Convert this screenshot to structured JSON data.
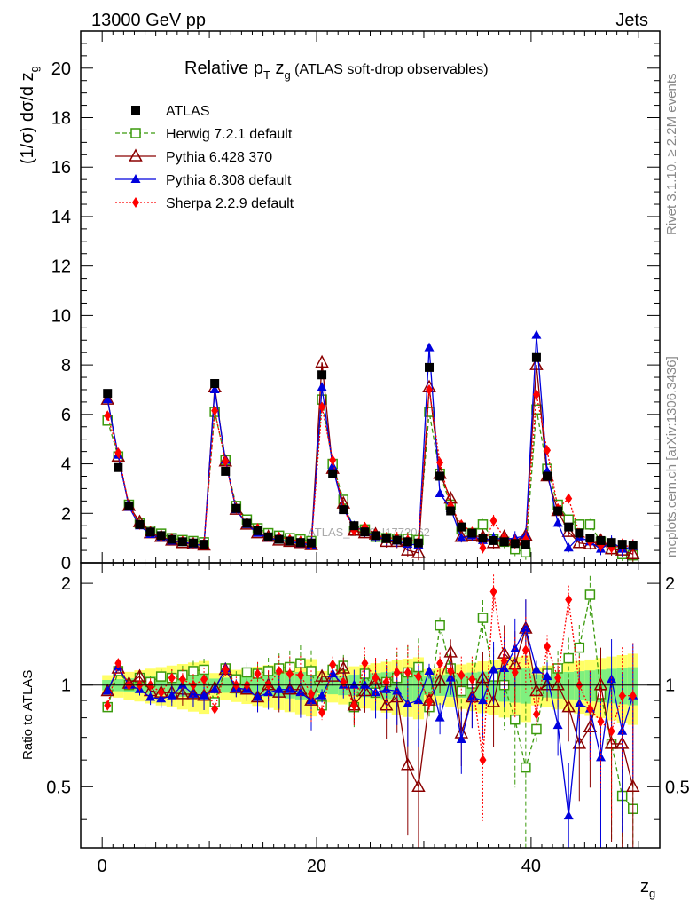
{
  "header": {
    "energy": "13000 GeV pp",
    "process": "Jets"
  },
  "title": {
    "prefix": "Relative p",
    "sub_t": "T",
    "mid": " z",
    "sub_g": "g",
    "suffix": " (ATLAS soft-drop observables)"
  },
  "ylabel_main": {
    "text": "(1/σ) dσ/d z",
    "sub": "g"
  },
  "ylabel_ratio": "Ratio to ATLAS",
  "xlabel": {
    "text": "z",
    "sub": "g"
  },
  "side_text_top": "Rivet 3.1.10, ≥ 2.2M events",
  "side_text_bottom": "mcplots.cern.ch [arXiv:1306.3436]",
  "watermark": "ATLAS_2019_I1772062",
  "colors": {
    "data": "#000000",
    "herwig": "#3a9a0c",
    "pythia6": "#8b0000",
    "pythia8": "#0000dd",
    "sherpa": "#ff0000",
    "band_inner": "#7ff07f",
    "band_outer": "#ffff66"
  },
  "chart_data": {
    "type": "line",
    "x_range": [
      -2,
      52
    ],
    "main_y_range": [
      0,
      21.5
    ],
    "ratio_y_range": [
      0.33,
      2.3
    ],
    "x_ticks": [
      "0",
      "20",
      "40"
    ],
    "y_ticks_main": [
      "0",
      "2",
      "4",
      "6",
      "8",
      "10",
      "12",
      "14",
      "16",
      "18",
      "20"
    ],
    "y_ticks_ratio": [
      "0.5",
      "1",
      "2"
    ],
    "legend": [
      "ATLAS",
      "Herwig 7.2.1 default",
      "Pythia 6.428 370",
      "Pythia 8.308 default",
      "Sherpa 2.2.9 default"
    ],
    "x": [
      0.5,
      1.5,
      2.5,
      3.5,
      4.5,
      5.5,
      6.5,
      7.5,
      8.5,
      9.5,
      10.5,
      11.5,
      12.5,
      13.5,
      14.5,
      15.5,
      16.5,
      17.5,
      18.5,
      19.5,
      20.5,
      21.5,
      22.5,
      23.5,
      24.5,
      25.5,
      26.5,
      27.5,
      28.5,
      29.5,
      30.5,
      31.5,
      32.5,
      33.5,
      34.5,
      35.5,
      36.5,
      37.5,
      38.5,
      39.5,
      40.5,
      41.5,
      42.5,
      43.5,
      44.5,
      45.5,
      46.5,
      47.5,
      48.5,
      49.5
    ],
    "series": [
      {
        "name": "ATLAS",
        "values": [
          6.85,
          3.85,
          2.3,
          1.55,
          1.25,
          1.1,
          0.95,
          0.85,
          0.8,
          0.75,
          7.25,
          3.7,
          2.2,
          1.6,
          1.3,
          1.05,
          0.95,
          0.88,
          0.82,
          0.8,
          7.6,
          3.6,
          2.15,
          1.5,
          1.25,
          1.1,
          0.98,
          0.92,
          0.85,
          0.8,
          7.9,
          3.5,
          2.1,
          1.45,
          1.2,
          1.0,
          0.9,
          0.85,
          0.78,
          0.75,
          8.3,
          3.5,
          2.1,
          1.45,
          1.2,
          1.0,
          0.9,
          0.82,
          0.75,
          0.7
        ]
      },
      {
        "name": "Herwig 7.2.1 default",
        "values": [
          5.75,
          4.3,
          2.35,
          1.6,
          1.3,
          1.18,
          1.0,
          0.92,
          0.88,
          0.83,
          6.1,
          4.15,
          2.3,
          1.75,
          1.4,
          1.2,
          1.1,
          1.0,
          0.95,
          0.88,
          6.6,
          4.0,
          2.55,
          1.3,
          1.35,
          1.05,
          1.0,
          0.97,
          0.97,
          0.92,
          6.1,
          3.6,
          2.35,
          1.35,
          1.2,
          1.55,
          0.95,
          0.85,
          0.55,
          0.42,
          6.2,
          3.8,
          2.35,
          1.75,
          1.55,
          1.55,
          0.85,
          0.55,
          0.35,
          0.3
        ]
      },
      {
        "name": "Pythia 6.428 370",
        "values": [
          6.6,
          4.3,
          2.3,
          1.65,
          1.2,
          1.05,
          0.9,
          0.8,
          0.75,
          0.7,
          7.1,
          4.1,
          2.15,
          1.55,
          1.2,
          1.05,
          0.9,
          0.85,
          0.8,
          0.72,
          8.1,
          3.8,
          2.4,
          1.3,
          1.2,
          1.15,
          0.85,
          0.85,
          0.5,
          0.4,
          7.1,
          3.6,
          2.6,
          1.05,
          1.1,
          1.05,
          0.8,
          1.05,
          0.9,
          1.1,
          8.0,
          3.5,
          2.1,
          1.25,
          0.8,
          0.75,
          0.9,
          0.55,
          0.5,
          0.35
        ]
      },
      {
        "name": "Pythia 8.308 default",
        "values": [
          6.6,
          4.35,
          2.25,
          1.5,
          1.15,
          1.0,
          0.88,
          0.85,
          0.75,
          0.7,
          7.0,
          4.15,
          2.15,
          1.55,
          1.2,
          1.0,
          0.92,
          0.85,
          0.78,
          0.72,
          7.1,
          3.9,
          2.15,
          1.5,
          1.25,
          1.05,
          0.95,
          0.88,
          0.75,
          0.72,
          8.7,
          2.8,
          2.2,
          1.0,
          1.1,
          0.9,
          1.0,
          0.95,
          1.0,
          1.1,
          9.2,
          3.7,
          1.6,
          0.6,
          1.05,
          0.85,
          0.55,
          0.85,
          0.55,
          0.65
        ]
      },
      {
        "name": "Sherpa 2.2.9 default",
        "values": [
          5.95,
          4.45,
          2.3,
          1.55,
          1.25,
          1.05,
          1.0,
          0.88,
          0.8,
          0.78,
          6.15,
          4.1,
          2.2,
          1.6,
          1.4,
          1.05,
          1.05,
          0.95,
          0.88,
          0.75,
          6.3,
          4.15,
          2.2,
          1.3,
          1.45,
          1.15,
          1.0,
          1.0,
          0.93,
          0.85,
          7.0,
          4.05,
          2.3,
          1.55,
          1.25,
          0.6,
          1.7,
          1.0,
          0.85,
          0.95,
          6.8,
          4.55,
          2.2,
          2.6,
          1.2,
          0.85,
          0.7,
          0.6,
          0.7,
          0.65
        ]
      }
    ],
    "ratio_series": [
      {
        "name": "Herwig 7.2.1 default",
        "values": [
          0.86,
          1.1,
          1.0,
          1.05,
          1.02,
          1.06,
          1.05,
          1.07,
          1.1,
          1.11,
          0.89,
          1.12,
          1.04,
          1.09,
          1.08,
          1.1,
          1.12,
          1.13,
          1.16,
          1.1,
          0.87,
          1.11,
          1.14,
          0.86,
          1.08,
          0.95,
          1.02,
          1.05,
          1.09,
          1.13,
          0.86,
          1.5,
          1.12,
          0.96,
          1.01,
          1.58,
          1.06,
          1.0,
          0.79,
          0.57,
          0.74,
          1.08,
          1.12,
          1.2,
          1.29,
          1.85,
          0.94,
          0.67,
          0.47,
          0.43
        ]
      },
      {
        "name": "Pythia 6.428 370",
        "values": [
          0.96,
          1.12,
          1.01,
          1.06,
          0.96,
          0.95,
          0.95,
          0.94,
          0.94,
          0.93,
          0.98,
          1.11,
          0.98,
          0.97,
          0.92,
          1.0,
          0.95,
          0.97,
          0.97,
          0.9,
          1.06,
          1.06,
          1.12,
          0.87,
          0.96,
          1.04,
          0.87,
          0.92,
          0.58,
          0.5,
          0.9,
          1.03,
          1.25,
          0.72,
          0.92,
          1.05,
          0.89,
          1.24,
          1.15,
          1.47,
          0.96,
          1.0,
          1.0,
          0.86,
          0.67,
          0.75,
          1.0,
          0.67,
          0.67,
          0.5
        ]
      },
      {
        "name": "Pythia 8.308 default",
        "values": [
          0.96,
          1.13,
          1.0,
          0.97,
          0.92,
          0.91,
          0.93,
          1.0,
          0.94,
          0.93,
          0.97,
          1.12,
          0.98,
          0.97,
          0.92,
          0.95,
          0.97,
          0.97,
          0.95,
          0.9,
          0.93,
          1.08,
          1.0,
          1.0,
          1.0,
          0.95,
          0.97,
          0.96,
          0.88,
          0.9,
          1.1,
          0.8,
          1.05,
          0.69,
          0.92,
          0.9,
          1.11,
          1.12,
          1.28,
          1.47,
          1.11,
          1.06,
          0.76,
          0.41,
          0.88,
          0.85,
          0.61,
          1.04,
          0.73,
          0.93
        ]
      },
      {
        "name": "Sherpa 2.2.9 default",
        "values": [
          0.87,
          1.16,
          1.0,
          1.0,
          1.0,
          0.95,
          1.05,
          1.04,
          1.0,
          1.04,
          0.85,
          1.11,
          1.0,
          1.0,
          1.08,
          1.0,
          1.1,
          1.08,
          1.07,
          0.94,
          0.83,
          1.15,
          1.02,
          0.87,
          1.16,
          1.05,
          1.02,
          1.09,
          1.09,
          1.06,
          0.89,
          1.16,
          1.1,
          1.07,
          1.04,
          0.6,
          1.89,
          1.18,
          1.09,
          1.27,
          0.82,
          1.3,
          1.05,
          1.79,
          1.0,
          0.85,
          0.78,
          0.73,
          0.93,
          0.93
        ]
      }
    ]
  }
}
